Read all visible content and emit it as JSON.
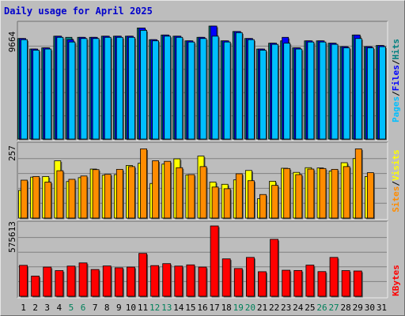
{
  "title": "Daily usage for April 2025",
  "chart_data": [
    {
      "type": "bar",
      "panel": "top",
      "y_max_label": "9664",
      "ylim": [
        0,
        9664
      ],
      "categories": [
        "1",
        "2",
        "3",
        "4",
        "5",
        "6",
        "7",
        "8",
        "9",
        "10",
        "11",
        "12",
        "13",
        "14",
        "15",
        "16",
        "17",
        "18",
        "19",
        "20",
        "21",
        "22",
        "23",
        "24",
        "25",
        "26",
        "27",
        "28",
        "29",
        "30",
        "31"
      ],
      "weekend_days": [
        "5",
        "6",
        "12",
        "13",
        "19",
        "20",
        "26",
        "27"
      ],
      "series": [
        {
          "name": "Hits",
          "color": "#008080",
          "values": [
            8600,
            7700,
            7800,
            8800,
            8700,
            8700,
            8700,
            8800,
            8800,
            8800,
            9500,
            8500,
            8900,
            8800,
            8400,
            8700,
            9664,
            8400,
            9200,
            8600,
            7700,
            8200,
            8400,
            7800,
            8400,
            8400,
            8200,
            7900,
            8900,
            7900,
            8000
          ]
        },
        {
          "name": "Files",
          "color": "#0000ff",
          "values": [
            8600,
            7700,
            7800,
            8800,
            8500,
            8700,
            8700,
            8800,
            8800,
            8800,
            9500,
            8500,
            8900,
            8800,
            8400,
            8700,
            9664,
            8400,
            9200,
            8600,
            7700,
            8200,
            8700,
            7800,
            8400,
            8400,
            8200,
            7900,
            8900,
            7900,
            8000
          ]
        },
        {
          "name": "Pages",
          "color": "#00bfff",
          "values": [
            8500,
            7600,
            7700,
            8700,
            8300,
            8600,
            8600,
            8700,
            8700,
            8700,
            9300,
            8400,
            8800,
            8700,
            8300,
            8600,
            8800,
            8300,
            9100,
            8500,
            7600,
            8100,
            8200,
            7700,
            8300,
            8300,
            8100,
            7800,
            8600,
            7800,
            7900
          ]
        }
      ]
    },
    {
      "type": "bar",
      "panel": "middle",
      "y_max_label": "257",
      "ylim": [
        0,
        257
      ],
      "categories": [
        "1",
        "2",
        "3",
        "4",
        "5",
        "6",
        "7",
        "8",
        "9",
        "10",
        "11",
        "12",
        "13",
        "14",
        "15",
        "16",
        "17",
        "18",
        "19",
        "20",
        "21",
        "22",
        "23",
        "24",
        "25",
        "26",
        "27",
        "28",
        "29",
        "30",
        "31"
      ],
      "series": [
        {
          "name": "Visits",
          "color": "#ffff00",
          "values": [
            100,
            148,
            150,
            207,
            132,
            146,
            177,
            155,
            157,
            190,
            198,
            125,
            195,
            214,
            156,
            224,
            130,
            122,
            138,
            172,
            70,
            133,
            180,
            165,
            182,
            181,
            170,
            200,
            215,
            150,
            0
          ]
        },
        {
          "name": "Sites",
          "color": "#ff8c00",
          "values": [
            137,
            150,
            130,
            171,
            140,
            152,
            175,
            158,
            176,
            186,
            250,
            207,
            205,
            182,
            157,
            186,
            112,
            106,
            160,
            135,
            85,
            118,
            179,
            157,
            177,
            179,
            176,
            186,
            250,
            164,
            0
          ]
        }
      ]
    },
    {
      "type": "bar",
      "panel": "bottom",
      "y_max_label": "575613",
      "ylim": [
        0,
        575613
      ],
      "categories": [
        "1",
        "2",
        "3",
        "4",
        "5",
        "6",
        "7",
        "8",
        "9",
        "10",
        "11",
        "12",
        "13",
        "14",
        "15",
        "16",
        "17",
        "18",
        "19",
        "20",
        "21",
        "22",
        "23",
        "24",
        "25",
        "26",
        "27",
        "28",
        "29",
        "30",
        "31"
      ],
      "series": [
        {
          "name": "KBytes",
          "color": "#ff0000",
          "values": [
            253000,
            165000,
            239000,
            210000,
            247000,
            273000,
            219000,
            248000,
            233000,
            239000,
            351000,
            251000,
            267000,
            247000,
            257000,
            239000,
            575613,
            306000,
            227000,
            318000,
            201000,
            466000,
            213000,
            211000,
            255000,
            202000,
            318000,
            210000,
            207000,
            0,
            0
          ]
        }
      ]
    }
  ],
  "axis_labels": {
    "top": [
      "Pages",
      "/",
      "Files",
      "/",
      "Hits"
    ],
    "middle": [
      "Sites",
      "/",
      "Visits"
    ],
    "bottom": [
      "KBytes"
    ]
  }
}
